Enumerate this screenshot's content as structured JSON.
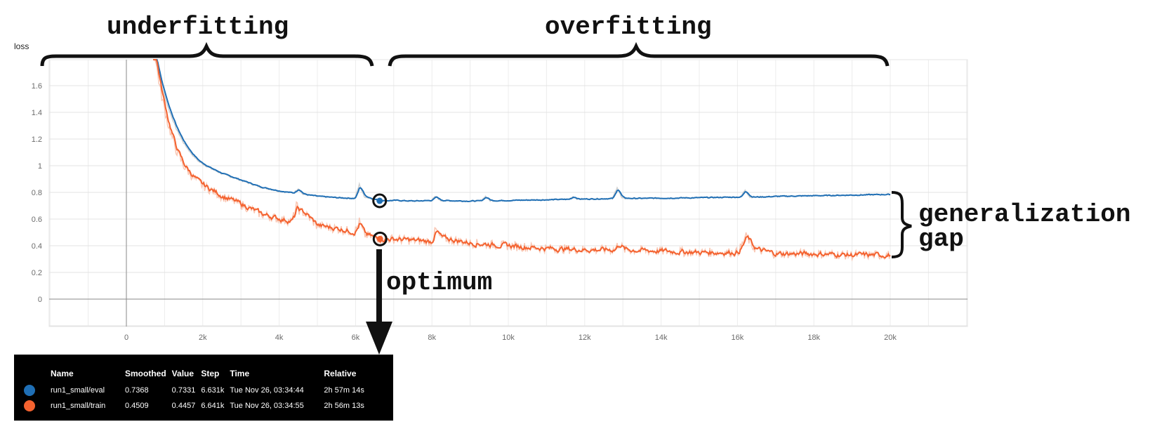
{
  "chart_data": {
    "type": "line",
    "ylabel": "loss",
    "xlabel": "",
    "xlim": [
      -2000,
      22000
    ],
    "ylim": [
      -0.2,
      1.8
    ],
    "x_ticks": [
      "0",
      "2k",
      "4k",
      "6k",
      "8k",
      "10k",
      "12k",
      "14k",
      "16k",
      "18k",
      "20k"
    ],
    "x_tick_values": [
      0,
      2000,
      4000,
      6000,
      8000,
      10000,
      12000,
      14000,
      16000,
      18000,
      20000
    ],
    "y_ticks": [
      "0",
      "0.2",
      "0.4",
      "0.6",
      "0.8",
      "1",
      "1.2",
      "1.4",
      "1.6"
    ],
    "y_tick_values": [
      0,
      0.2,
      0.4,
      0.6,
      0.8,
      1.0,
      1.2,
      1.4,
      1.6
    ],
    "grid": true,
    "series": [
      {
        "name": "run1_small/eval",
        "color": "#1f6fb5",
        "raw_color": "#c4c4c4",
        "points": [
          [
            700,
            1.9
          ],
          [
            900,
            1.62
          ],
          [
            1100,
            1.43
          ],
          [
            1300,
            1.28
          ],
          [
            1500,
            1.17
          ],
          [
            1700,
            1.09
          ],
          [
            1900,
            1.03
          ],
          [
            2200,
            0.98
          ],
          [
            2500,
            0.94
          ],
          [
            3000,
            0.89
          ],
          [
            3500,
            0.84
          ],
          [
            4000,
            0.81
          ],
          [
            4500,
            0.79
          ],
          [
            5000,
            0.77
          ],
          [
            5500,
            0.76
          ],
          [
            6000,
            0.755
          ],
          [
            6200,
            0.77
          ],
          [
            6631,
            0.7368
          ],
          [
            7000,
            0.74
          ],
          [
            7500,
            0.735
          ],
          [
            8000,
            0.74
          ],
          [
            9000,
            0.735
          ],
          [
            10000,
            0.74
          ],
          [
            11000,
            0.745
          ],
          [
            12000,
            0.75
          ],
          [
            12800,
            0.755
          ],
          [
            13500,
            0.755
          ],
          [
            14000,
            0.757
          ],
          [
            15000,
            0.76
          ],
          [
            16000,
            0.765
          ],
          [
            16500,
            0.765
          ],
          [
            17000,
            0.77
          ],
          [
            18000,
            0.775
          ],
          [
            19000,
            0.78
          ],
          [
            20000,
            0.785
          ]
        ],
        "spikes": [
          [
            4500,
            0.83
          ],
          [
            6100,
            0.86
          ],
          [
            8100,
            0.77
          ],
          [
            9400,
            0.77
          ],
          [
            11700,
            0.77
          ],
          [
            12850,
            0.84
          ],
          [
            16200,
            0.82
          ]
        ]
      },
      {
        "name": "run1_small/train",
        "color": "#f4622f",
        "raw_color": "#f7b9a1",
        "points": [
          [
            700,
            1.9
          ],
          [
            900,
            1.55
          ],
          [
            1100,
            1.3
          ],
          [
            1300,
            1.12
          ],
          [
            1500,
            1.0
          ],
          [
            1700,
            0.93
          ],
          [
            1900,
            0.87
          ],
          [
            2200,
            0.82
          ],
          [
            2500,
            0.77
          ],
          [
            3000,
            0.71
          ],
          [
            3500,
            0.64
          ],
          [
            4000,
            0.6
          ],
          [
            4400,
            0.58
          ],
          [
            4600,
            0.66
          ],
          [
            5000,
            0.55
          ],
          [
            5500,
            0.53
          ],
          [
            6000,
            0.5
          ],
          [
            6641,
            0.4509
          ],
          [
            7000,
            0.45
          ],
          [
            7500,
            0.44
          ],
          [
            8000,
            0.43
          ],
          [
            8200,
            0.46
          ],
          [
            9000,
            0.42
          ],
          [
            10000,
            0.4
          ],
          [
            11000,
            0.38
          ],
          [
            12000,
            0.37
          ],
          [
            13000,
            0.37
          ],
          [
            14000,
            0.36
          ],
          [
            15000,
            0.35
          ],
          [
            16000,
            0.35
          ],
          [
            16200,
            0.44
          ],
          [
            16500,
            0.37
          ],
          [
            17000,
            0.34
          ],
          [
            18000,
            0.34
          ],
          [
            19000,
            0.33
          ],
          [
            20000,
            0.33
          ]
        ],
        "spikes": [
          [
            4450,
            0.7
          ],
          [
            6100,
            0.58
          ],
          [
            8100,
            0.52
          ],
          [
            12900,
            0.42
          ],
          [
            16250,
            0.47
          ]
        ]
      }
    ],
    "annotations": {
      "underfitting": "underfitting",
      "overfitting": "overfitting",
      "generalization_line1": "generalization",
      "generalization_line2": "gap",
      "optimum": "optimum"
    },
    "tooltip": {
      "columns": [
        "Name",
        "Smoothed",
        "Value",
        "Step",
        "Time",
        "Relative"
      ],
      "rows": [
        {
          "color": "#1f6fb5",
          "name": "run1_small/eval",
          "smoothed": "0.7368",
          "value": "0.7331",
          "step": "6.631k",
          "time": "Tue Nov 26, 03:34:44",
          "relative": "2h 57m 14s",
          "step_value": 6631
        },
        {
          "color": "#f4622f",
          "name": "run1_small/train",
          "smoothed": "0.4509",
          "value": "0.4457",
          "step": "6.641k",
          "time": "Tue Nov 26, 03:34:55",
          "relative": "2h 56m 13s",
          "step_value": 6641
        }
      ]
    }
  }
}
